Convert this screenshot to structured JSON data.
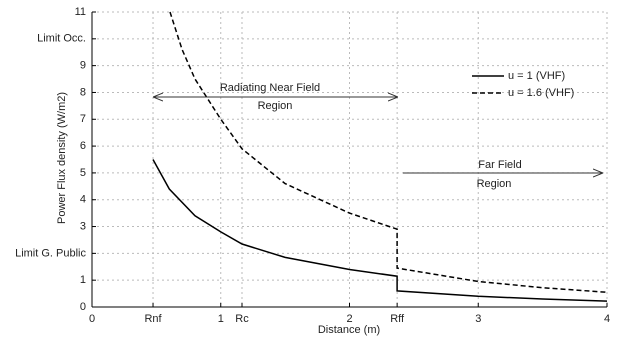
{
  "chart_data": {
    "type": "line",
    "x_label": "Distance (m)",
    "y_label": "Power Flux density (W/m2)",
    "xlim": [
      0,
      4
    ],
    "ylim": [
      0,
      11
    ],
    "xticks": [
      0,
      {
        "value": 0.474,
        "label": "Rnf"
      },
      1,
      {
        "value": 1.165,
        "label": "Rc"
      },
      2,
      {
        "value": 2.37,
        "label": "Rff"
      },
      3,
      4
    ],
    "yticks": [
      0,
      1,
      {
        "value": 2,
        "label": "Limit G. Public"
      },
      3,
      4,
      5,
      6,
      7,
      8,
      9,
      {
        "value": 10,
        "label": "Limit Occ."
      },
      11
    ],
    "grid": true,
    "legend": "upper right",
    "series": [
      {
        "name": "u = 1 (VHF)",
        "color": "#000000",
        "style": "solid",
        "x": [
          0.474,
          0.6,
          0.8,
          1.0,
          1.165,
          1.5,
          2.0,
          2.37,
          2.37,
          3.0,
          3.5,
          4.0
        ],
        "values": [
          5.5,
          4.4,
          3.4,
          2.8,
          2.35,
          1.85,
          1.4,
          1.15,
          0.6,
          0.4,
          0.3,
          0.22
        ]
      },
      {
        "name": "u = 1.6 (VHF)",
        "color": "#000000",
        "style": "dashed",
        "x": [
          0.606,
          0.7,
          0.8,
          1.0,
          1.165,
          1.5,
          2.0,
          2.37,
          2.37,
          3.0,
          3.5,
          4.0
        ],
        "values": [
          11,
          9.6,
          8.5,
          7.0,
          5.9,
          4.6,
          3.5,
          2.9,
          1.45,
          0.95,
          0.72,
          0.55
        ]
      }
    ],
    "annotations": [
      "Radiating Near Field",
      "Region",
      "Far Field",
      "Region"
    ]
  }
}
